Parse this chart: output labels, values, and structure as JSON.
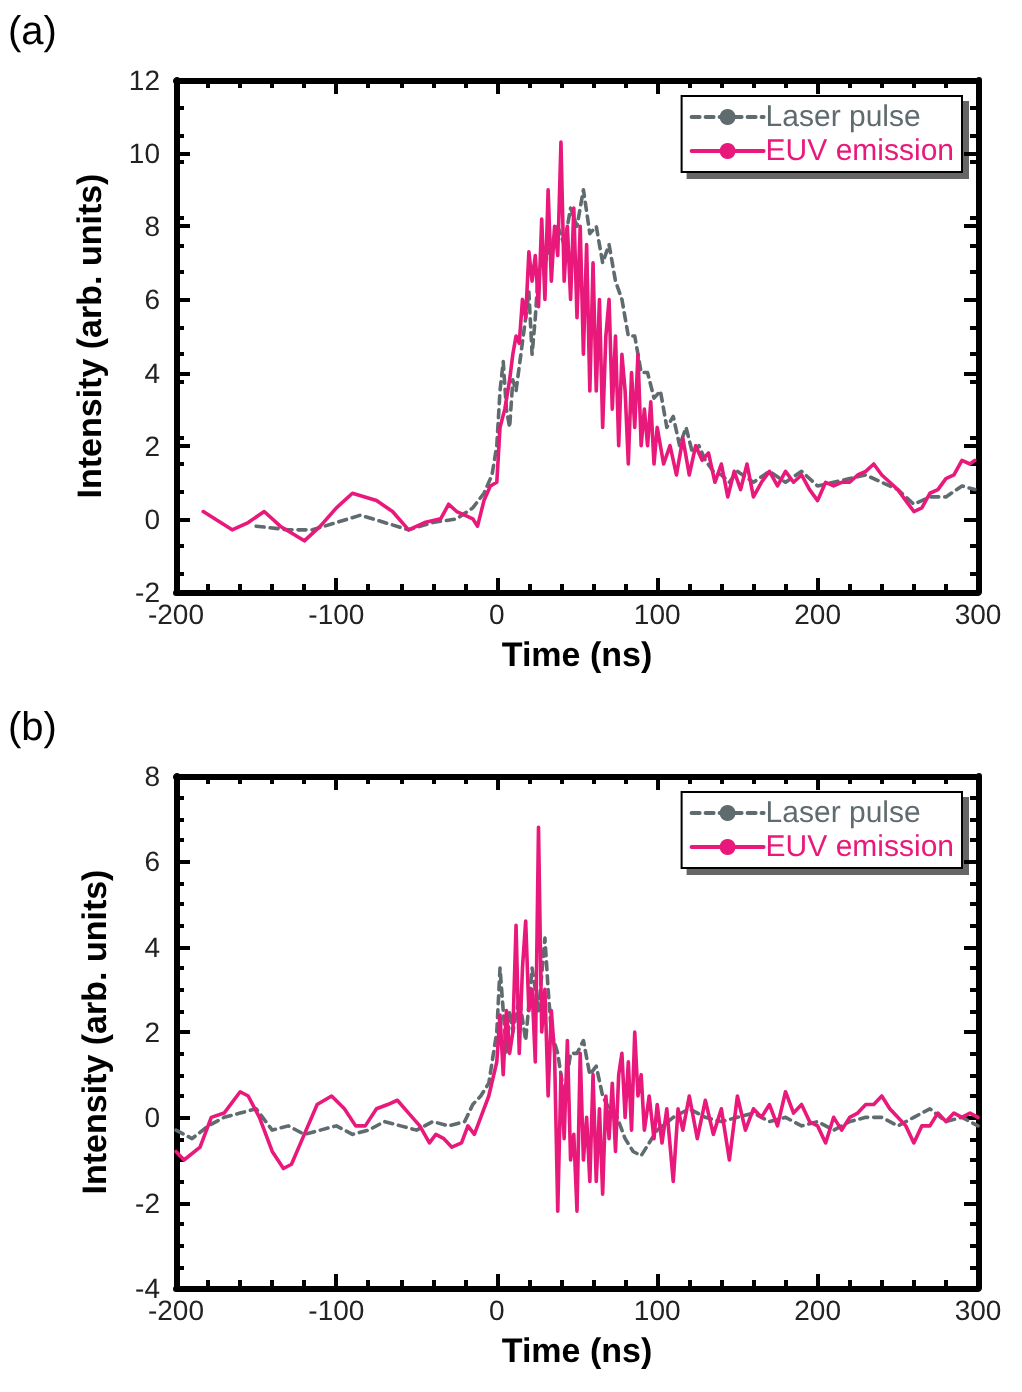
{
  "chart_data": [
    {
      "type": "line",
      "annotations": [
        "(a)"
      ],
      "xlabel": "Time (ns)",
      "ylabel": "Intensity (arb. units)",
      "xlim": [
        -200,
        300
      ],
      "xticks": [
        -200,
        -100,
        0,
        100,
        200,
        300
      ],
      "ylim": [
        -2,
        12
      ],
      "yticks": [
        -2,
        0,
        2,
        4,
        6,
        8,
        10,
        12
      ],
      "grid": false,
      "legend": "top right",
      "marker": "none",
      "series": [
        {
          "name": "Laser pulse",
          "color": "#5f6b6e",
          "line_style": "dashed",
          "x": [
            -150,
            -130,
            -115,
            -100,
            -85,
            -70,
            -55,
            -40,
            -25,
            -15,
            -8,
            -3,
            0,
            2,
            4,
            6,
            8,
            10,
            12,
            15,
            18,
            20,
            22,
            24,
            26,
            30,
            34,
            38,
            42,
            46,
            50,
            54,
            58,
            62,
            66,
            70,
            74,
            78,
            82,
            86,
            90,
            94,
            98,
            102,
            106,
            110,
            114,
            118,
            122,
            126,
            130,
            135,
            140,
            145,
            150,
            160,
            170,
            180,
            190,
            200,
            210,
            220,
            230,
            240,
            250,
            260,
            270,
            280,
            290,
            298
          ],
          "values": [
            -0.2,
            -0.3,
            -0.3,
            -0.1,
            0.1,
            -0.1,
            -0.3,
            -0.1,
            0.0,
            0.3,
            0.7,
            1.2,
            2.0,
            3.5,
            4.3,
            3.0,
            2.5,
            3.8,
            3.5,
            4.5,
            5.5,
            6.2,
            4.5,
            5.5,
            6.8,
            7.0,
            7.5,
            8.0,
            7.5,
            8.5,
            8.0,
            9.0,
            7.8,
            8.0,
            7.0,
            7.5,
            6.5,
            6.0,
            5.0,
            5.0,
            4.0,
            4.0,
            3.3,
            3.5,
            2.5,
            2.8,
            2.0,
            2.5,
            1.8,
            2.0,
            1.6,
            1.3,
            1.2,
            1.0,
            1.3,
            1.0,
            1.3,
            1.0,
            1.3,
            0.9,
            1.0,
            1.1,
            1.2,
            1.0,
            0.8,
            0.4,
            0.6,
            0.6,
            0.9,
            0.8
          ]
        },
        {
          "name": "EUV emission",
          "color": "#e8197a",
          "line_style": "solid",
          "x": [
            -183,
            -165,
            -155,
            -145,
            -135,
            -120,
            -110,
            -100,
            -90,
            -75,
            -65,
            -55,
            -45,
            -35,
            -30,
            -25,
            -20,
            -15,
            -12,
            -8,
            -4,
            0,
            2,
            5,
            8,
            10,
            12,
            14,
            16,
            18,
            20,
            22,
            24,
            26,
            28,
            30,
            32,
            34,
            36,
            38,
            40,
            42,
            44,
            46,
            48,
            50,
            52,
            54,
            56,
            58,
            60,
            62,
            64,
            66,
            68,
            70,
            72,
            74,
            76,
            78,
            80,
            82,
            84,
            86,
            88,
            90,
            92,
            94,
            96,
            98,
            100,
            104,
            108,
            112,
            116,
            120,
            124,
            128,
            132,
            136,
            140,
            144,
            148,
            152,
            156,
            160,
            165,
            170,
            175,
            180,
            185,
            190,
            195,
            200,
            205,
            210,
            215,
            220,
            225,
            230,
            235,
            240,
            245,
            250,
            255,
            260,
            265,
            270,
            275,
            280,
            285,
            290,
            295,
            298
          ],
          "values": [
            0.2,
            -0.3,
            -0.1,
            0.2,
            -0.2,
            -0.6,
            -0.2,
            0.3,
            0.7,
            0.5,
            0.2,
            -0.3,
            -0.1,
            0.0,
            0.4,
            0.2,
            0.1,
            0.0,
            -0.2,
            0.5,
            0.9,
            1.0,
            2.5,
            3.0,
            3.8,
            4.5,
            5.0,
            4.8,
            6.0,
            5.5,
            7.3,
            6.5,
            7.2,
            5.8,
            8.2,
            6.0,
            9.0,
            6.5,
            8.0,
            7.2,
            10.3,
            6.5,
            8.0,
            6.0,
            8.5,
            5.5,
            8.0,
            4.5,
            7.5,
            3.5,
            7.0,
            3.5,
            6.0,
            2.5,
            5.0,
            6.0,
            3.0,
            5.0,
            2.0,
            4.5,
            3.5,
            1.5,
            4.0,
            2.5,
            4.5,
            2.0,
            3.0,
            2.0,
            3.2,
            1.5,
            2.5,
            1.5,
            2.0,
            1.2,
            2.2,
            1.2,
            2.0,
            1.6,
            1.8,
            1.0,
            1.5,
            0.6,
            1.3,
            0.8,
            1.5,
            0.6,
            1.0,
            1.3,
            0.9,
            1.3,
            1.0,
            1.2,
            0.8,
            0.5,
            1.0,
            0.9,
            1.0,
            1.0,
            1.2,
            1.3,
            1.5,
            1.2,
            1.0,
            0.8,
            0.5,
            0.2,
            0.3,
            0.7,
            0.8,
            1.1,
            1.2,
            1.6,
            1.5,
            1.6
          ]
        }
      ]
    },
    {
      "type": "line",
      "annotations": [
        "(b)"
      ],
      "xlabel": "Time (ns)",
      "ylabel": "Intensity (arb. units)",
      "xlim": [
        -200,
        300
      ],
      "xticks": [
        -200,
        -100,
        0,
        100,
        200,
        300
      ],
      "ylim": [
        -4,
        8
      ],
      "yticks": [
        -4,
        -2,
        0,
        2,
        4,
        6,
        8
      ],
      "grid": false,
      "legend": "top right",
      "marker": "none",
      "series": [
        {
          "name": "Laser pulse",
          "color": "#5f6b6e",
          "line_style": "dashed",
          "x": [
            -200,
            -190,
            -180,
            -170,
            -160,
            -150,
            -140,
            -130,
            -120,
            -110,
            -100,
            -90,
            -80,
            -70,
            -60,
            -50,
            -40,
            -30,
            -20,
            -15,
            -10,
            -5,
            0,
            2,
            4,
            6,
            8,
            10,
            14,
            18,
            22,
            26,
            30,
            32,
            34,
            38,
            42,
            46,
            50,
            54,
            58,
            62,
            66,
            70,
            75,
            80,
            85,
            90,
            95,
            100,
            110,
            120,
            130,
            140,
            150,
            160,
            170,
            180,
            190,
            200,
            210,
            220,
            230,
            240,
            250,
            260,
            270,
            280,
            290,
            300
          ],
          "values": [
            -0.3,
            -0.5,
            -0.2,
            0.0,
            0.1,
            0.2,
            -0.3,
            -0.2,
            -0.4,
            -0.3,
            -0.2,
            -0.4,
            -0.3,
            -0.1,
            -0.2,
            -0.3,
            -0.1,
            -0.2,
            -0.1,
            0.3,
            0.5,
            0.8,
            2.0,
            3.5,
            2.5,
            1.5,
            2.5,
            2.0,
            2.8,
            1.8,
            3.5,
            2.5,
            4.2,
            3.0,
            2.0,
            1.5,
            0.5,
            1.5,
            1.5,
            1.8,
            1.0,
            1.2,
            0.5,
            0.2,
            0.0,
            -0.5,
            -0.8,
            -0.9,
            -0.6,
            -0.3,
            0.0,
            0.2,
            0.0,
            -0.1,
            0.0,
            0.1,
            -0.1,
            0.0,
            -0.2,
            -0.1,
            -0.3,
            -0.1,
            0.0,
            0.0,
            -0.2,
            0.0,
            0.2,
            -0.1,
            0.0,
            -0.2
          ]
        },
        {
          "name": "EUV emission",
          "color": "#e8197a",
          "line_style": "solid",
          "x": [
            -200,
            -195,
            -185,
            -178,
            -170,
            -160,
            -155,
            -148,
            -140,
            -133,
            -128,
            -120,
            -112,
            -103,
            -95,
            -88,
            -82,
            -75,
            -68,
            -62,
            -55,
            -48,
            -42,
            -38,
            -33,
            -28,
            -22,
            -18,
            -14,
            -10,
            -5,
            0,
            2,
            4,
            6,
            8,
            10,
            12,
            14,
            16,
            18,
            20,
            22,
            24,
            26,
            28,
            30,
            32,
            34,
            36,
            38,
            40,
            42,
            44,
            46,
            48,
            50,
            52,
            54,
            56,
            58,
            60,
            62,
            64,
            66,
            68,
            70,
            72,
            74,
            76,
            78,
            80,
            82,
            84,
            86,
            88,
            90,
            92,
            95,
            98,
            100,
            103,
            106,
            110,
            113,
            116,
            120,
            125,
            130,
            135,
            140,
            145,
            150,
            155,
            160,
            165,
            170,
            175,
            180,
            185,
            190,
            195,
            200,
            205,
            210,
            215,
            220,
            225,
            230,
            235,
            240,
            245,
            250,
            255,
            260,
            265,
            270,
            275,
            280,
            285,
            290,
            295,
            300
          ],
          "values": [
            -0.8,
            -1.0,
            -0.7,
            0.0,
            0.1,
            0.6,
            0.5,
            0.0,
            -0.8,
            -1.2,
            -1.1,
            -0.4,
            0.3,
            0.5,
            0.2,
            -0.2,
            -0.2,
            0.2,
            0.3,
            0.4,
            0.1,
            -0.2,
            -0.6,
            -0.4,
            -0.5,
            -0.7,
            -0.6,
            -0.2,
            -0.4,
            0.0,
            0.5,
            1.3,
            2.4,
            1.0,
            2.5,
            1.5,
            2.0,
            4.5,
            1.5,
            3.5,
            4.6,
            2.5,
            3.0,
            1.3,
            6.8,
            2.0,
            3.0,
            0.5,
            2.5,
            1.5,
            -2.2,
            1.0,
            -0.5,
            1.8,
            -1.0,
            -0.4,
            -2.2,
            1.5,
            -1.0,
            0.0,
            -1.5,
            1.0,
            -1.5,
            0.2,
            -1.8,
            0.5,
            -0.5,
            0.8,
            -0.8,
            1.0,
            1.5,
            0.0,
            1.3,
            -0.3,
            2.0,
            0.5,
            1.0,
            -0.3,
            0.5,
            -0.5,
            0.3,
            -0.6,
            0.2,
            -1.5,
            0.2,
            -0.3,
            0.5,
            -0.5,
            0.4,
            -0.4,
            0.2,
            -1.0,
            0.5,
            -0.3,
            0.2,
            0.0,
            0.3,
            -0.2,
            0.6,
            0.1,
            0.3,
            -0.1,
            -0.2,
            -0.6,
            0.0,
            -0.3,
            0.0,
            0.1,
            0.3,
            0.3,
            0.5,
            0.2,
            0.0,
            -0.2,
            -0.6,
            -0.2,
            -0.2,
            0.1,
            -0.1,
            0.1,
            0.0,
            0.1,
            0.0
          ]
        }
      ]
    }
  ]
}
